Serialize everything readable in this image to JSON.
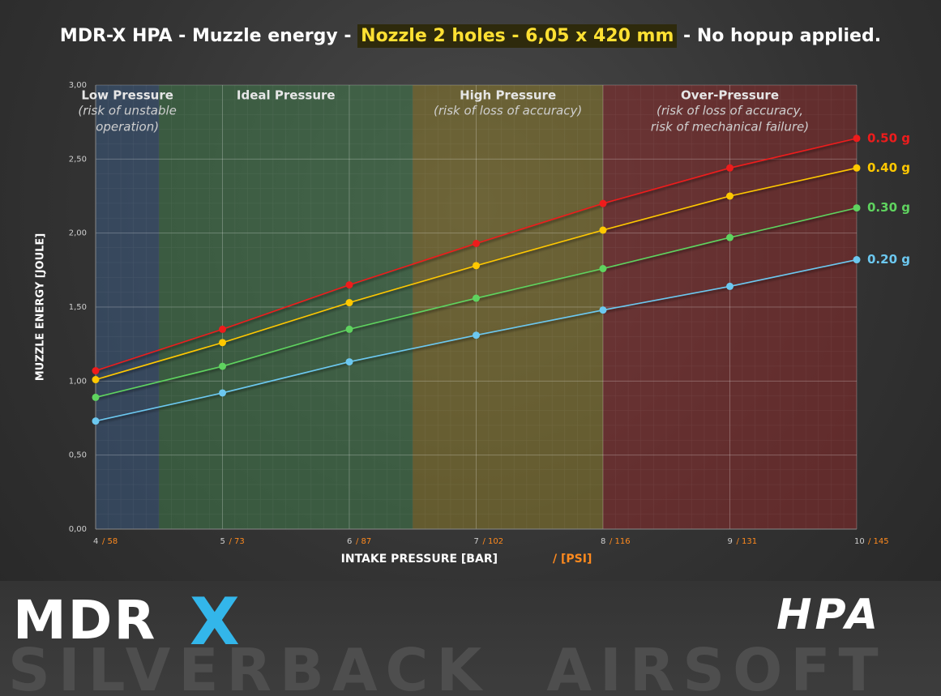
{
  "chart_data": {
    "type": "line",
    "title_parts": [
      "MDR-X HPA - Muzzle energy - ",
      "Nozzle 2 holes - 6,05 x 420 mm",
      " - No hopup applied."
    ],
    "ylabel": "MUZZLE ENERGY [JOULE]",
    "xlabel": "INTAKE PRESSURE [BAR]",
    "xlabel_secondary": "/ [PSI]",
    "x": [
      4,
      5,
      6,
      7,
      8,
      9,
      10
    ],
    "x_secondary_labels": [
      "/ 58",
      "/ 73",
      "/ 87",
      "/ 102",
      "/ 116",
      "/ 131",
      "/ 145"
    ],
    "xlim": [
      4,
      10
    ],
    "xticks": [
      4,
      5,
      6,
      7,
      8,
      9,
      10
    ],
    "ylim": [
      0,
      3
    ],
    "yticks": [
      {
        "value": 0,
        "label": "0,00"
      },
      {
        "value": 0.5,
        "label": "0,50"
      },
      {
        "value": 1,
        "label": "1,00"
      },
      {
        "value": 1.5,
        "label": "1,50"
      },
      {
        "value": 2,
        "label": "2,00"
      },
      {
        "value": 2.5,
        "label": "2,50"
      },
      {
        "value": 3,
        "label": "3,00"
      }
    ],
    "grid": true,
    "zones": [
      {
        "label": "Low Pressure",
        "note": [
          "(risk of unstable",
          "operation)"
        ],
        "from": 4,
        "to": 4.5,
        "color": "#3a5a80"
      },
      {
        "label": "Ideal Pressure",
        "note": [],
        "from": 4.5,
        "to": 6.5,
        "color": "#3f7a4a"
      },
      {
        "label": "High Pressure",
        "note": [
          "(risk of loss of accuracy)"
        ],
        "from": 6.5,
        "to": 8,
        "color": "#8a7a2a"
      },
      {
        "label": "Over-Pressure",
        "note": [
          "(risk of loss of accuracy,",
          "risk of mechanical failure)"
        ],
        "from": 8,
        "to": 10,
        "color": "#8a2a2a"
      }
    ],
    "series": [
      {
        "name": "0.50 g",
        "color": "#ee1c1c",
        "values": [
          1.07,
          1.35,
          1.65,
          1.93,
          2.2,
          2.44,
          2.64
        ]
      },
      {
        "name": "0.40 g",
        "color": "#ffc800",
        "values": [
          1.01,
          1.26,
          1.53,
          1.78,
          2.02,
          2.25,
          2.44
        ]
      },
      {
        "name": "0.30 g",
        "color": "#5fd35f",
        "values": [
          0.89,
          1.1,
          1.35,
          1.56,
          1.76,
          1.97,
          2.17
        ]
      },
      {
        "name": "0.20 g",
        "color": "#6cc8f0",
        "values": [
          0.73,
          0.92,
          1.13,
          1.31,
          1.48,
          1.64,
          1.82
        ]
      }
    ]
  },
  "footer": {
    "logo_left": "MDR",
    "logo_x": "X",
    "logo_right": "HPA",
    "brand": "SILVERBACK  AIRSOFT"
  }
}
